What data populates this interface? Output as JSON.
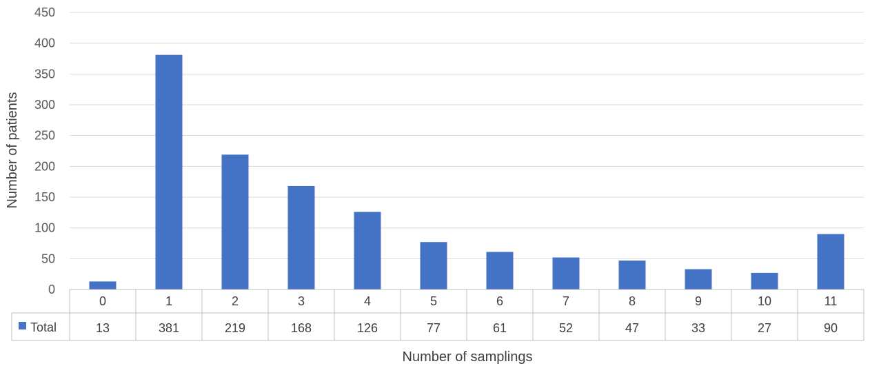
{
  "chart_data": {
    "type": "bar",
    "xlabel": "Number of samplings",
    "ylabel": "Number of patients",
    "ylim": [
      0,
      450
    ],
    "yticks": [
      0,
      50,
      100,
      150,
      200,
      250,
      300,
      350,
      400,
      450
    ],
    "categories": [
      "0",
      "1",
      "2",
      "3",
      "4",
      "5",
      "6",
      "7",
      "8",
      "9",
      "10",
      "11"
    ],
    "series": [
      {
        "name": "Total",
        "values": [
          13,
          381,
          219,
          168,
          126,
          77,
          61,
          52,
          47,
          33,
          27,
          90
        ]
      }
    ],
    "grid": true,
    "data_table": true,
    "bar_color": "#4472C4",
    "grid_color": "#D9D9D9"
  }
}
